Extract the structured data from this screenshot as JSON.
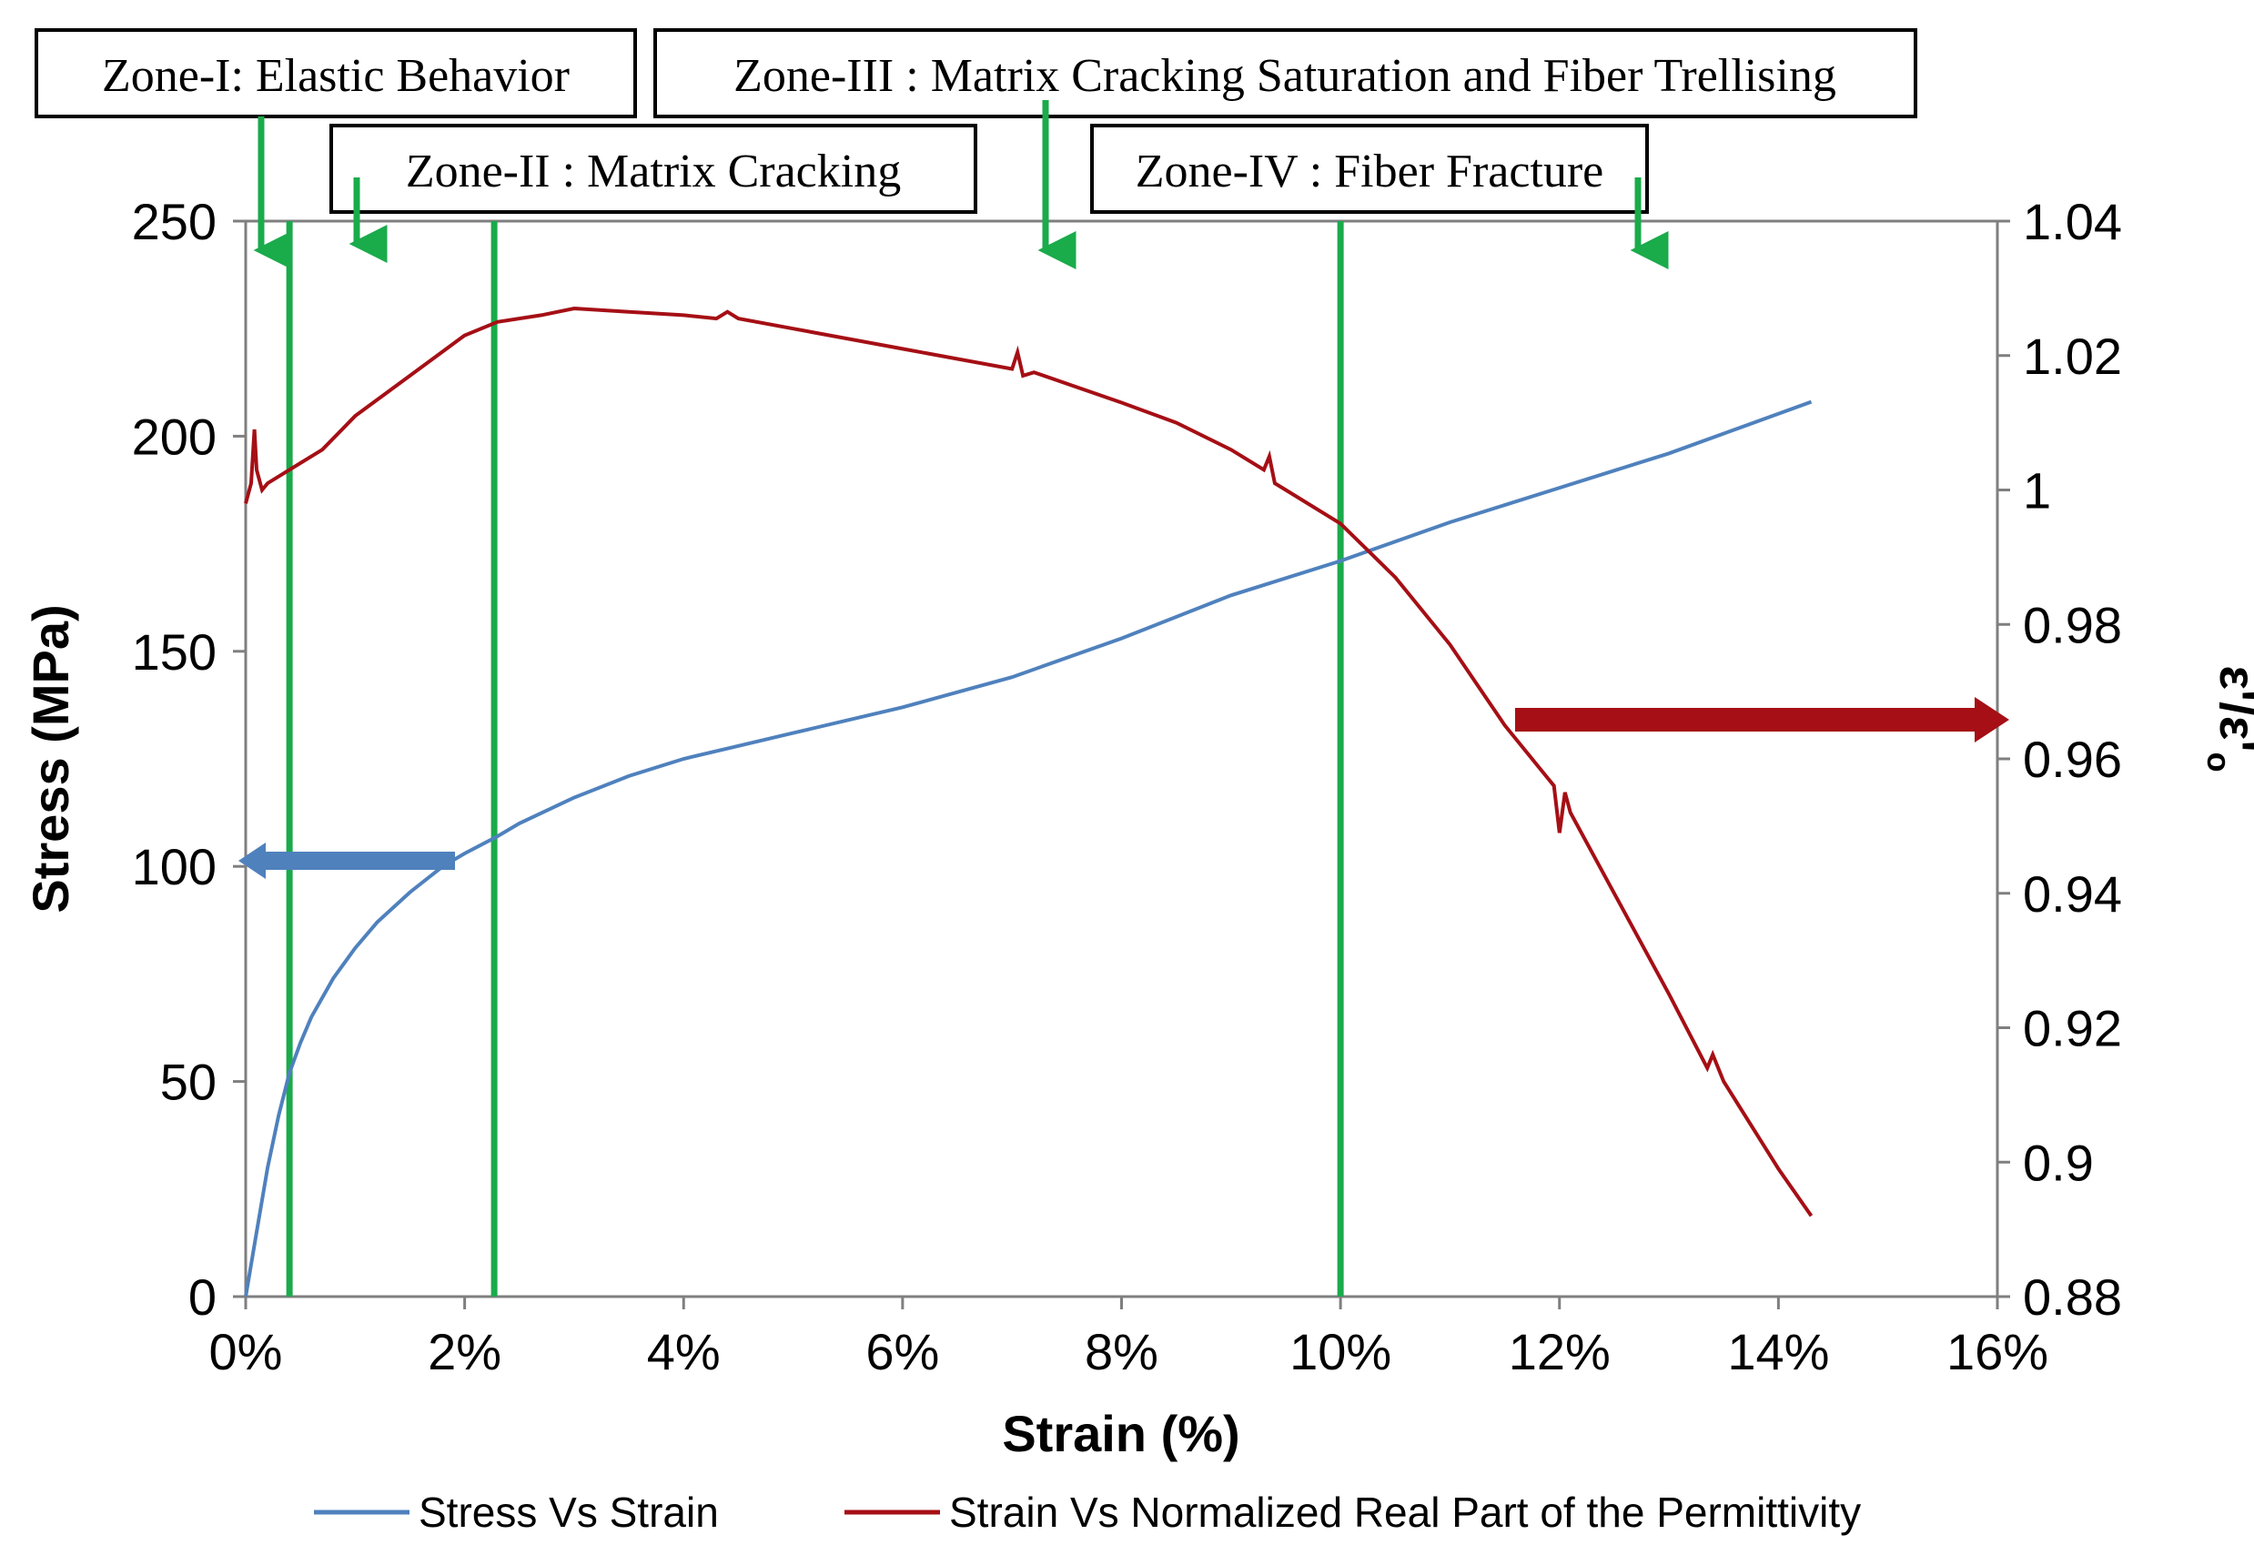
{
  "colors": {
    "stress": "#4f81bd",
    "permittivity": "#a50f15",
    "zone_line": "#1aab4b",
    "axis": "#7f7f7f"
  },
  "zone_labels": [
    {
      "id": "zone1",
      "text": "Zone-I: Elastic Behavior"
    },
    {
      "id": "zone2",
      "text": "Zone-II : Matrix Cracking"
    },
    {
      "id": "zone3",
      "text": "Zone-III : Matrix Cracking Saturation and Fiber Trellising"
    },
    {
      "id": "zone4",
      "text": "Zone-IV : Fiber Fracture"
    }
  ],
  "chart_data": {
    "type": "line",
    "title": "",
    "xlabel": "Strain (%)",
    "ylabel": "Stress (MPa)",
    "y2label": "ε'/ε'o",
    "xlim": [
      0,
      16
    ],
    "ylim": [
      0,
      250
    ],
    "y2lim": [
      0.88,
      1.04
    ],
    "x_tick_labels": [
      "0%",
      "2%",
      "4%",
      "6%",
      "8%",
      "10%",
      "12%",
      "14%",
      "16%"
    ],
    "y_tick_labels": [
      "0",
      "50",
      "100",
      "150",
      "200",
      "250"
    ],
    "y2_tick_labels": [
      "0.88",
      "0.9",
      "0.92",
      "0.94",
      "0.96",
      "0.98",
      "1",
      "1.02",
      "1.04"
    ],
    "zone_boundaries": [
      0.4,
      2.27,
      10.0
    ],
    "series": [
      {
        "name": "Stress Vs Strain",
        "axis": "left",
        "x": [
          0,
          0.1,
          0.2,
          0.3,
          0.4,
          0.5,
          0.6,
          0.8,
          1.0,
          1.2,
          1.5,
          1.8,
          2.0,
          2.3,
          2.5,
          3.0,
          3.5,
          4.0,
          4.5,
          5.0,
          6.0,
          7.0,
          8.0,
          9.0,
          10.0,
          11.0,
          12.0,
          13.0,
          14.3
        ],
        "values": [
          0,
          15,
          30,
          42,
          52,
          59,
          65,
          74,
          81,
          87,
          94,
          100,
          103,
          107,
          110,
          116,
          121,
          125,
          128,
          131,
          137,
          144,
          153,
          163,
          171,
          180,
          188,
          196,
          208
        ]
      },
      {
        "name": "Strain Vs Normalized Real Part of the Permittivity",
        "axis": "right",
        "x": [
          0,
          0.05,
          0.08,
          0.1,
          0.15,
          0.2,
          0.4,
          0.7,
          1.0,
          1.5,
          2.0,
          2.3,
          2.7,
          3.0,
          3.5,
          4.0,
          4.3,
          4.4,
          4.5,
          5.0,
          6.0,
          7.0,
          7.05,
          7.1,
          7.2,
          8.0,
          8.5,
          9.0,
          9.3,
          9.35,
          9.4,
          9.5,
          10.0,
          10.5,
          11.0,
          11.5,
          11.9,
          11.95,
          12.0,
          12.05,
          12.1,
          12.5,
          13.0,
          13.35,
          13.4,
          13.5,
          14.0,
          14.3
        ],
        "values": [
          0.998,
          1.001,
          1.009,
          1.003,
          1.0,
          1.001,
          1.003,
          1.006,
          1.011,
          1.017,
          1.023,
          1.025,
          1.026,
          1.027,
          1.0265,
          1.026,
          1.0255,
          1.0265,
          1.0255,
          1.024,
          1.021,
          1.018,
          1.0205,
          1.017,
          1.0175,
          1.013,
          1.01,
          1.006,
          1.003,
          1.005,
          1.001,
          1.0,
          0.995,
          0.987,
          0.977,
          0.965,
          0.957,
          0.956,
          0.949,
          0.955,
          0.952,
          0.94,
          0.925,
          0.914,
          0.916,
          0.912,
          0.899,
          0.892
        ]
      }
    ],
    "legend": {
      "position": "bottom",
      "entries": [
        "Stress Vs Strain",
        "Strain Vs Normalized Real Part of the Permittivity"
      ]
    }
  }
}
